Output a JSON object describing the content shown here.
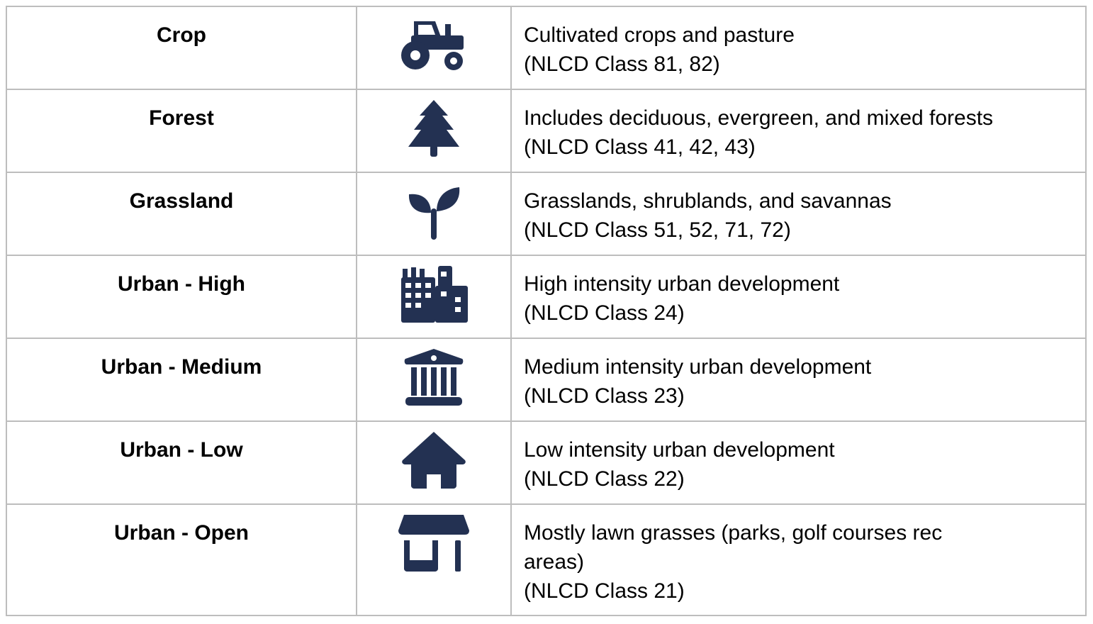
{
  "colors": {
    "icon": "#233152",
    "border": "#bdbdbd",
    "text": "#000000"
  },
  "rows": [
    {
      "name": "Crop",
      "icon": "tractor-icon",
      "lines": [
        "Cultivated crops and pasture",
        "(NLCD Class 81, 82)"
      ]
    },
    {
      "name": "Forest",
      "icon": "pine-tree-icon",
      "lines": [
        "Includes deciduous, evergreen, and mixed forests",
        "(NLCD Class 41, 42, 43)"
      ]
    },
    {
      "name": "Grassland",
      "icon": "seedling-icon",
      "lines": [
        "Grasslands, shrublands, and savannas",
        "(NLCD Class 51, 52, 71, 72)"
      ]
    },
    {
      "name": "Urban - High",
      "icon": "city-buildings-icon",
      "lines": [
        "High intensity urban development",
        "(NLCD Class 24)"
      ]
    },
    {
      "name": "Urban - Medium",
      "icon": "bank-building-icon",
      "lines": [
        "Medium intensity urban development",
        "(NLCD Class 23)"
      ]
    },
    {
      "name": "Urban - Low",
      "icon": "house-icon",
      "lines": [
        "Low intensity urban development",
        "(NLCD Class 22)"
      ]
    },
    {
      "name": "Urban - Open",
      "icon": "store-icon",
      "lines": [
        "Mostly lawn grasses (parks, golf courses rec",
        "areas)",
        "(NLCD Class 21)"
      ]
    }
  ]
}
